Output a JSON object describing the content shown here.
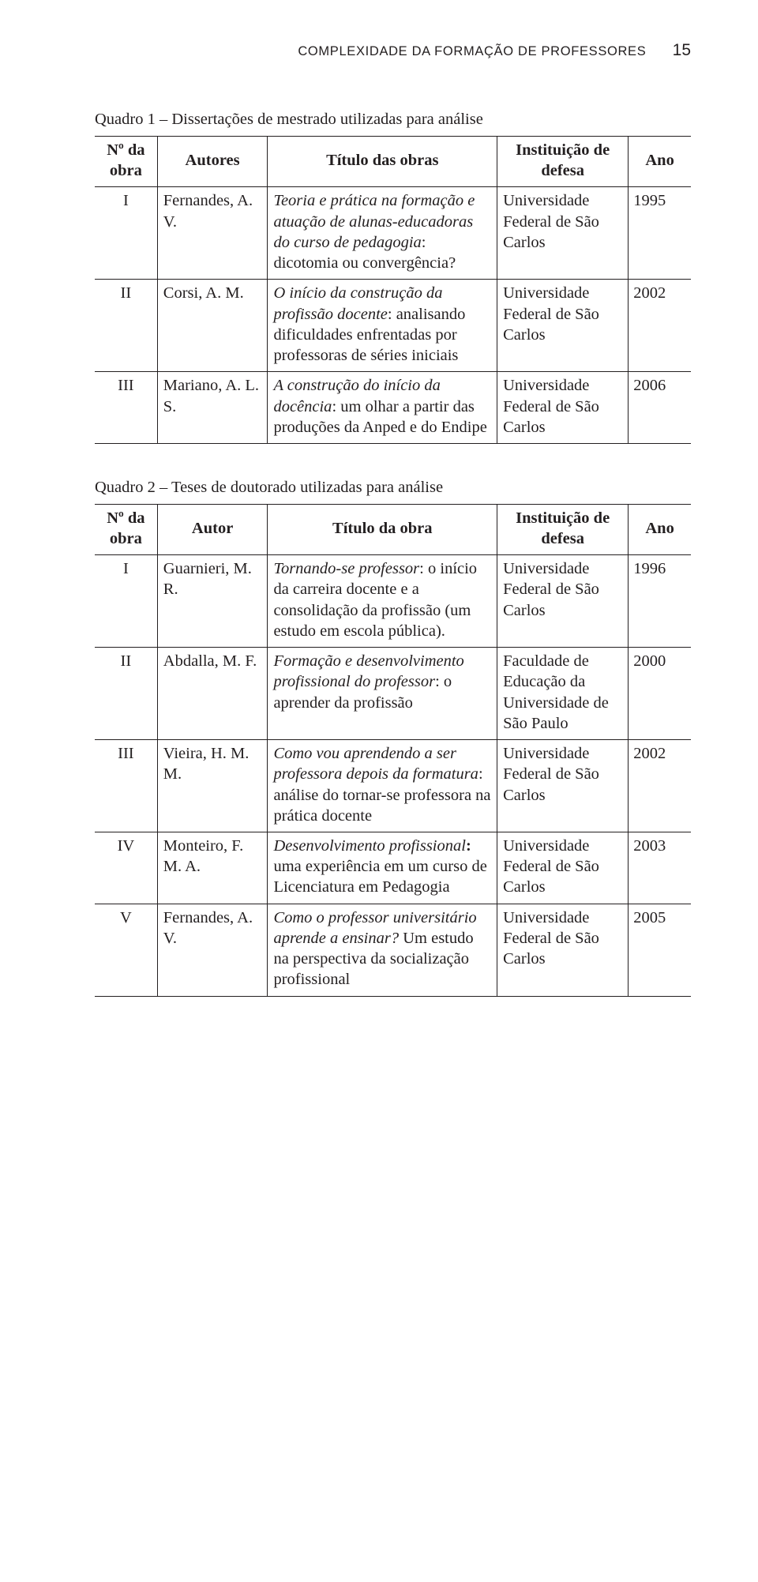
{
  "page": {
    "running_title": "COMPLEXIDADE DA FORMAÇÃO DE PROFESSORES",
    "page_number": "15"
  },
  "colors": {
    "text": "#231f20",
    "rule": "#231f20",
    "background": "#ffffff"
  },
  "typography": {
    "body_family": "Times New Roman / Adobe Caslon Pro",
    "header_family": "Helvetica Neue / sans-serif",
    "body_size_pt": 11,
    "header_size_pt": 9
  },
  "table1": {
    "caption": "Quadro 1 – Dissertações de mestrado utilizadas para análise",
    "headers": {
      "num": "Nº da obra",
      "author": "Autores",
      "title": "Título das obras",
      "inst": "Instituição de defesa",
      "year": "Ano"
    },
    "rows": [
      {
        "num": "I",
        "author": "Fernandes, A. V.",
        "title_italic": "Teoria e prática na formação e atuação de alunas-educadoras do curso de pedagogia",
        "title_rest": ": dicotomia ou convergência?",
        "inst": "Universidade Federal de São Carlos",
        "year": "1995"
      },
      {
        "num": "II",
        "author": "Corsi, A. M.",
        "title_italic": "O início da construção da profissão docente",
        "title_rest": ": analisando dificuldades enfrentadas por professoras de séries iniciais",
        "inst": "Universidade Federal de São Carlos",
        "year": "2002"
      },
      {
        "num": "III",
        "author": "Mariano, A. L. S.",
        "title_italic": "A construção do início da docência",
        "title_rest": ": um olhar a partir das produções da Anped e do Endipe",
        "inst": "Universidade Federal de São Carlos",
        "year": "2006"
      }
    ]
  },
  "table2": {
    "caption": "Quadro 2 – Teses de doutorado utilizadas para análise",
    "headers": {
      "num": "Nº da obra",
      "author": "Autor",
      "title": "Título da obra",
      "inst": "Instituição de defesa",
      "year": "Ano"
    },
    "rows": [
      {
        "num": "I",
        "author": "Guarnieri, M. R.",
        "title_italic": "Tornando-se professor",
        "title_rest": ": o início da carreira docente e a consolidação da profissão (um estudo em escola pública).",
        "inst": "Universidade Federal de São Carlos",
        "year": "1996"
      },
      {
        "num": "II",
        "author": "Abdalla, M. F.",
        "title_italic": "Formação e desenvolvimento profissional do professor",
        "title_rest": ": o aprender da profissão",
        "inst": "Faculdade de Educação da Universidade de São Paulo",
        "year": "2000"
      },
      {
        "num": "III",
        "author": "Vieira, H. M. M.",
        "title_italic": "Como vou aprendendo a ser professora depois da formatura",
        "title_rest": ": análise do tornar-se professora na prática docente",
        "inst": "Universidade Federal de São Carlos",
        "year": "2002"
      },
      {
        "num": "IV",
        "author": "Monteiro, F. M. A.",
        "title_italic": "Desenvolvimento profissional",
        "title_rest_bold_colon": ":",
        "title_rest": " uma experiência em um curso de Licenciatura em Pedagogia",
        "inst": "Universidade Federal de São Carlos",
        "year": "2003"
      },
      {
        "num": "V",
        "author": "Fernandes, A. V.",
        "title_italic": "Como o professor universitário aprende a ensinar?",
        "title_rest": " Um estudo na perspectiva da socialização profissional",
        "inst": "Universidade Federal de São Carlos",
        "year": "2005"
      }
    ]
  }
}
